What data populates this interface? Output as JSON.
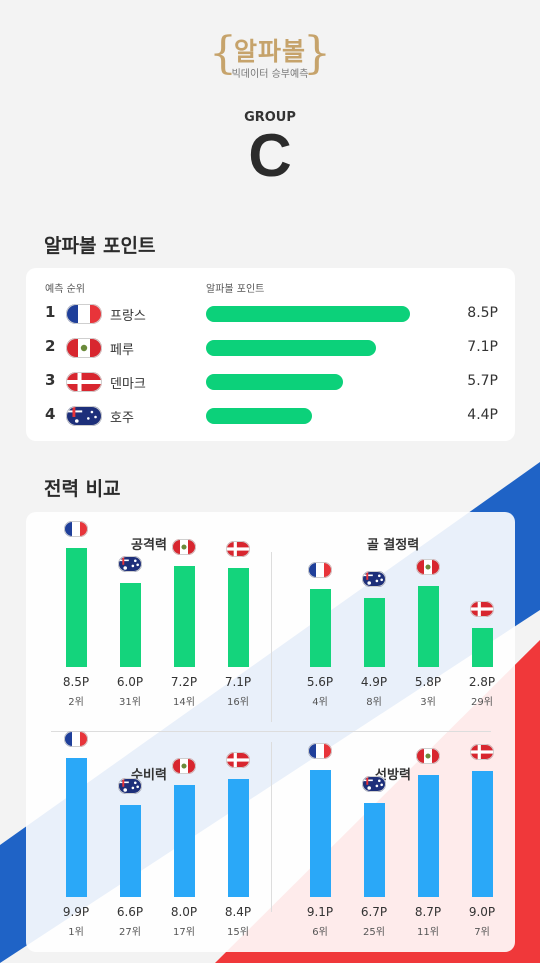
{
  "logo": {
    "name": "알파볼",
    "subtitle": "빅데이터 승부예측",
    "brace_left": "{",
    "brace_right": "}"
  },
  "group": {
    "label": "GROUP",
    "letter": "C"
  },
  "points_section": {
    "title": "알파볼 포인트",
    "col_rank": "예측 순위",
    "col_points": "알파볼 포인트",
    "max_value": 10,
    "rows": [
      {
        "rank": "1",
        "country": "프랑스",
        "flag": "france-flag",
        "value": 8.5,
        "label": "8.5P"
      },
      {
        "rank": "2",
        "country": "페루",
        "flag": "peru-flag",
        "value": 7.1,
        "label": "7.1P"
      },
      {
        "rank": "3",
        "country": "덴마크",
        "flag": "denmark-flag",
        "value": 5.7,
        "label": "5.7P"
      },
      {
        "rank": "4",
        "country": "호주",
        "flag": "australia-flag",
        "value": 4.4,
        "label": "4.4P"
      }
    ]
  },
  "compare_section": {
    "title": "전력 비교",
    "max_value": 10,
    "colors": {
      "attack": "#14d47c",
      "defense": "#2aa8f8"
    },
    "panels": [
      {
        "id": "attack",
        "title": "공격력",
        "color": "green",
        "items": [
          {
            "flag": "france-flag",
            "value": 8.5,
            "label": "8.5P",
            "rank": "2위"
          },
          {
            "flag": "australia-flag",
            "value": 6.0,
            "label": "6.0P",
            "rank": "31위"
          },
          {
            "flag": "peru-flag",
            "value": 7.2,
            "label": "7.2P",
            "rank": "14위"
          },
          {
            "flag": "denmark-flag",
            "value": 7.1,
            "label": "7.1P",
            "rank": "16위"
          }
        ]
      },
      {
        "id": "finishing",
        "title": "골 결정력",
        "color": "green",
        "items": [
          {
            "flag": "france-flag",
            "value": 5.6,
            "label": "5.6P",
            "rank": "4위"
          },
          {
            "flag": "australia-flag",
            "value": 4.9,
            "label": "4.9P",
            "rank": "8위"
          },
          {
            "flag": "peru-flag",
            "value": 5.8,
            "label": "5.8P",
            "rank": "3위"
          },
          {
            "flag": "denmark-flag",
            "value": 2.8,
            "label": "2.8P",
            "rank": "29위"
          }
        ]
      },
      {
        "id": "defense",
        "title": "수비력",
        "color": "blue",
        "items": [
          {
            "flag": "france-flag",
            "value": 9.9,
            "label": "9.9P",
            "rank": "1위"
          },
          {
            "flag": "australia-flag",
            "value": 6.6,
            "label": "6.6P",
            "rank": "27위"
          },
          {
            "flag": "peru-flag",
            "value": 8.0,
            "label": "8.0P",
            "rank": "17위"
          },
          {
            "flag": "denmark-flag",
            "value": 8.4,
            "label": "8.4P",
            "rank": "15위"
          }
        ]
      },
      {
        "id": "lineup",
        "title": "선방력",
        "color": "blue",
        "items": [
          {
            "flag": "france-flag",
            "value": 9.1,
            "label": "9.1P",
            "rank": "6위"
          },
          {
            "flag": "australia-flag",
            "value": 6.7,
            "label": "6.7P",
            "rank": "25위"
          },
          {
            "flag": "peru-flag",
            "value": 8.7,
            "label": "8.7P",
            "rank": "11위"
          },
          {
            "flag": "denmark-flag",
            "value": 9.0,
            "label": "9.0P",
            "rank": "7위"
          }
        ]
      }
    ]
  }
}
